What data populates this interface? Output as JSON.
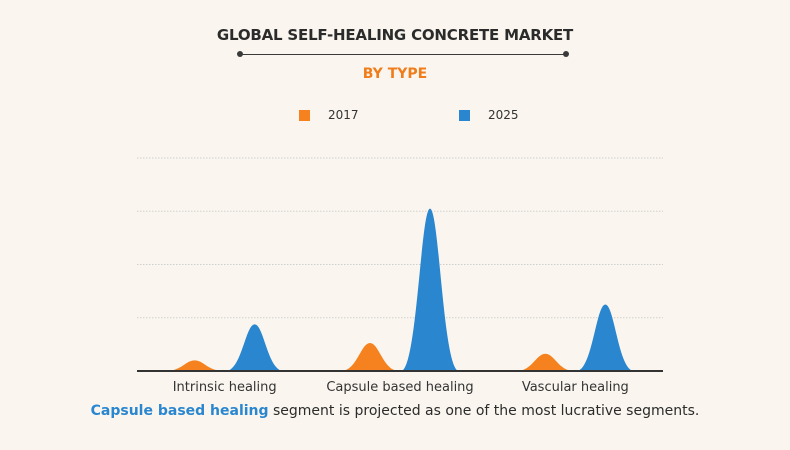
{
  "chart_data": {
    "type": "area",
    "title": "GLOBAL SELF-HEALING CONCRETE MARKET",
    "subtitle": "BY TYPE",
    "categories": [
      "Intrinsic healing",
      "Capsule based healing",
      "Vascular healing"
    ],
    "series": [
      {
        "name": "2017",
        "values": [
          0.8,
          2.1,
          1.3
        ]
      },
      {
        "name": "2025",
        "values": [
          3.5,
          12.2,
          5.0
        ]
      }
    ],
    "ylim": [
      0,
      16
    ],
    "y_axis_labels_shown": false,
    "grid": true,
    "legend_position": "top-center"
  },
  "caption": {
    "highlight": "Capsule based healing",
    "rest": " segment is projected as one of the most lucrative segments."
  },
  "colors": {
    "series_2017": "#f5821f",
    "series_2025": "#2a86cf",
    "subtitle": "#f07d1c",
    "caption_highlight": "#2a86cf",
    "background": "#faf6ef",
    "gridline": "#cfcfcf",
    "axis": "#333333"
  }
}
